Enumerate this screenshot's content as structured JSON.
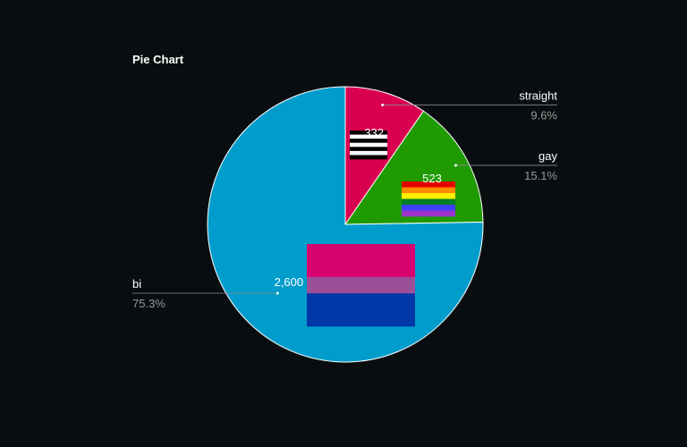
{
  "chart_data": {
    "type": "pie",
    "title": "Pie Chart",
    "categories": [
      "straight",
      "gay",
      "bi"
    ],
    "values": [
      332,
      523,
      2600
    ],
    "value_labels": [
      "332",
      "523",
      "2,600"
    ],
    "percent_labels": [
      "9.6%",
      "15.1%",
      "75.3%"
    ],
    "colors": [
      "#d9004f",
      "#1f9a00",
      "#009dcc"
    ],
    "start_angle_deg": 0,
    "direction": "clockwise",
    "label_sides": [
      "right",
      "right",
      "left"
    ]
  },
  "icons": [
    "straight-flag-icon",
    "rainbow-flag-icon",
    "bi-flag-icon"
  ],
  "flag_colors": {
    "straight": [
      "#000000",
      "#ffffff"
    ],
    "rainbow": [
      "#e40303",
      "#ff8c00",
      "#ffed00",
      "#008026",
      "#4040ff",
      "#9b34c8"
    ],
    "bi": [
      "#d60270",
      "#9b4f96",
      "#0038a8"
    ]
  }
}
